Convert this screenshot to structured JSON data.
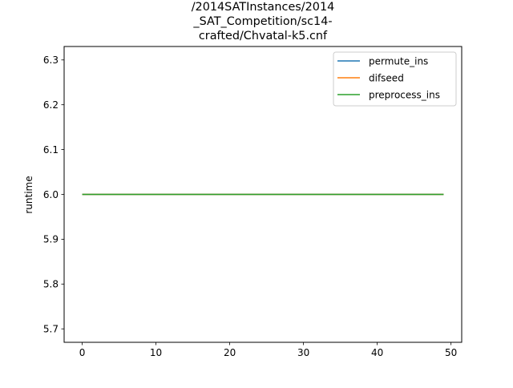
{
  "chart_data": {
    "type": "line",
    "title_lines": [
      "/2014SATInstances/2014",
      "_SAT_Competition/sc14-",
      "crafted/Chvatal-k5.cnf"
    ],
    "xlabel": "",
    "ylabel": "runtime",
    "xlim": [
      -2.45,
      51.45
    ],
    "ylim": [
      5.67,
      6.33
    ],
    "xticks": [
      0,
      10,
      20,
      30,
      40,
      50
    ],
    "xtick_labels": [
      "0",
      "10",
      "20",
      "30",
      "40",
      "50"
    ],
    "yticks": [
      5.7,
      5.8,
      5.9,
      6.0,
      6.1,
      6.2,
      6.3
    ],
    "ytick_labels": [
      "5.7",
      "5.8",
      "5.9",
      "6.0",
      "6.1",
      "6.2",
      "6.3"
    ],
    "grid": false,
    "legend_position": "top-right",
    "series": [
      {
        "name": "permute_ins",
        "color": "#1f77b4",
        "x": [
          0,
          49
        ],
        "y": [
          6.0,
          6.0
        ]
      },
      {
        "name": "difseed",
        "color": "#ff7f0e",
        "x": [
          0,
          49
        ],
        "y": [
          6.0,
          6.0
        ]
      },
      {
        "name": "preprocess_ins",
        "color": "#2ca02c",
        "x": [
          0,
          49
        ],
        "y": [
          6.0,
          6.0
        ]
      }
    ]
  }
}
